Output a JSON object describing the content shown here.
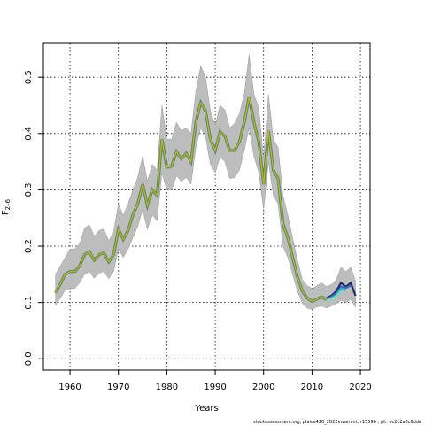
{
  "chart_data": {
    "type": "line",
    "xlabel": "Years",
    "ylabel_main": "F",
    "ylabel_sub": "2–6",
    "xlim": [
      1954.5,
      2022
    ],
    "ylim": [
      -0.02,
      0.56
    ],
    "xticks": [
      1960,
      1970,
      1980,
      1990,
      2000,
      2010,
      2020
    ],
    "yticks": [
      0.0,
      0.1,
      0.2,
      0.3,
      0.4,
      0.5
    ],
    "ytick_labels": [
      "0.0",
      "0.1",
      "0.2",
      "0.3",
      "0.4",
      "0.5"
    ],
    "grid": true,
    "footer": "stockassessment.org, plaice420_2022invariant, r15596 ; git: ec2c2a0c6dde",
    "colors": {
      "band": "#bdbdbd",
      "main": "#6a9a2e",
      "highlight": "#d6b43a",
      "retro1": "#1e2b6a",
      "retro2": "#3a6ab8",
      "retro3": "#2ab3c9",
      "retro4": "#7fd6c0"
    },
    "series": [
      {
        "role": "estimate",
        "x": [
          1957,
          1958,
          1959,
          1960,
          1961,
          1962,
          1963,
          1964,
          1965,
          1966,
          1967,
          1968,
          1969,
          1970,
          1971,
          1972,
          1973,
          1974,
          1975,
          1976,
          1977,
          1978,
          1979,
          1980,
          1981,
          1982,
          1983,
          1984,
          1985,
          1986,
          1987,
          1988,
          1989,
          1990,
          1991,
          1992,
          1993,
          1994,
          1995,
          1996,
          1997,
          1998,
          1999,
          2000,
          2001,
          2002,
          2003,
          2004,
          2005,
          2006,
          2007,
          2008,
          2009,
          2010,
          2011,
          2012,
          2013,
          2014,
          2015,
          2016,
          2017,
          2018,
          2019
        ],
        "values": [
          0.117,
          0.133,
          0.15,
          0.155,
          0.155,
          0.165,
          0.185,
          0.19,
          0.175,
          0.185,
          0.188,
          0.172,
          0.185,
          0.23,
          0.212,
          0.228,
          0.256,
          0.275,
          0.31,
          0.272,
          0.3,
          0.29,
          0.39,
          0.34,
          0.342,
          0.368,
          0.355,
          0.365,
          0.35,
          0.42,
          0.455,
          0.44,
          0.39,
          0.37,
          0.403,
          0.395,
          0.37,
          0.37,
          0.385,
          0.42,
          0.465,
          0.42,
          0.385,
          0.31,
          0.405,
          0.335,
          0.32,
          0.24,
          0.215,
          0.18,
          0.145,
          0.12,
          0.108,
          0.102,
          0.106,
          0.11,
          0.105,
          0.108,
          0.112,
          0.12,
          0.118,
          0.125,
          0.112
        ],
        "lower": [
          0.095,
          0.108,
          0.122,
          0.125,
          0.125,
          0.135,
          0.15,
          0.155,
          0.143,
          0.152,
          0.155,
          0.142,
          0.155,
          0.195,
          0.18,
          0.195,
          0.215,
          0.235,
          0.265,
          0.23,
          0.255,
          0.245,
          0.33,
          0.3,
          0.3,
          0.325,
          0.315,
          0.322,
          0.31,
          0.375,
          0.41,
          0.395,
          0.345,
          0.33,
          0.358,
          0.35,
          0.32,
          0.322,
          0.335,
          0.37,
          0.41,
          0.36,
          0.33,
          0.265,
          0.35,
          0.29,
          0.275,
          0.2,
          0.18,
          0.15,
          0.12,
          0.098,
          0.09,
          0.088,
          0.092,
          0.094,
          0.09,
          0.094,
          0.098,
          0.104,
          0.1,
          0.105,
          0.092
        ],
        "upper": [
          0.15,
          0.165,
          0.18,
          0.195,
          0.195,
          0.205,
          0.232,
          0.238,
          0.218,
          0.228,
          0.23,
          0.21,
          0.225,
          0.275,
          0.255,
          0.275,
          0.3,
          0.322,
          0.36,
          0.315,
          0.345,
          0.335,
          0.45,
          0.39,
          0.39,
          0.42,
          0.405,
          0.41,
          0.4,
          0.475,
          0.52,
          0.5,
          0.44,
          0.415,
          0.45,
          0.442,
          0.41,
          0.418,
          0.435,
          0.47,
          0.54,
          0.47,
          0.445,
          0.355,
          0.47,
          0.39,
          0.375,
          0.29,
          0.255,
          0.215,
          0.175,
          0.14,
          0.13,
          0.125,
          0.13,
          0.135,
          0.128,
          0.132,
          0.14,
          0.163,
          0.155,
          0.163,
          0.138
        ]
      }
    ],
    "retro_endpoints": [
      {
        "x": [
          2013,
          2014,
          2015,
          2016,
          2017,
          2018,
          2019
        ],
        "values": [
          0.108,
          0.112,
          0.12,
          0.135,
          0.128,
          0.135,
          0.112
        ]
      },
      {
        "x": [
          2013,
          2014,
          2015,
          2016,
          2017,
          2018
        ],
        "values": [
          0.106,
          0.11,
          0.116,
          0.128,
          0.126,
          0.13
        ]
      },
      {
        "x": [
          2013,
          2014,
          2015,
          2016,
          2017
        ],
        "values": [
          0.105,
          0.108,
          0.113,
          0.124,
          0.122
        ]
      },
      {
        "x": [
          2013,
          2014,
          2015,
          2016
        ],
        "values": [
          0.104,
          0.107,
          0.111,
          0.12
        ]
      }
    ]
  }
}
